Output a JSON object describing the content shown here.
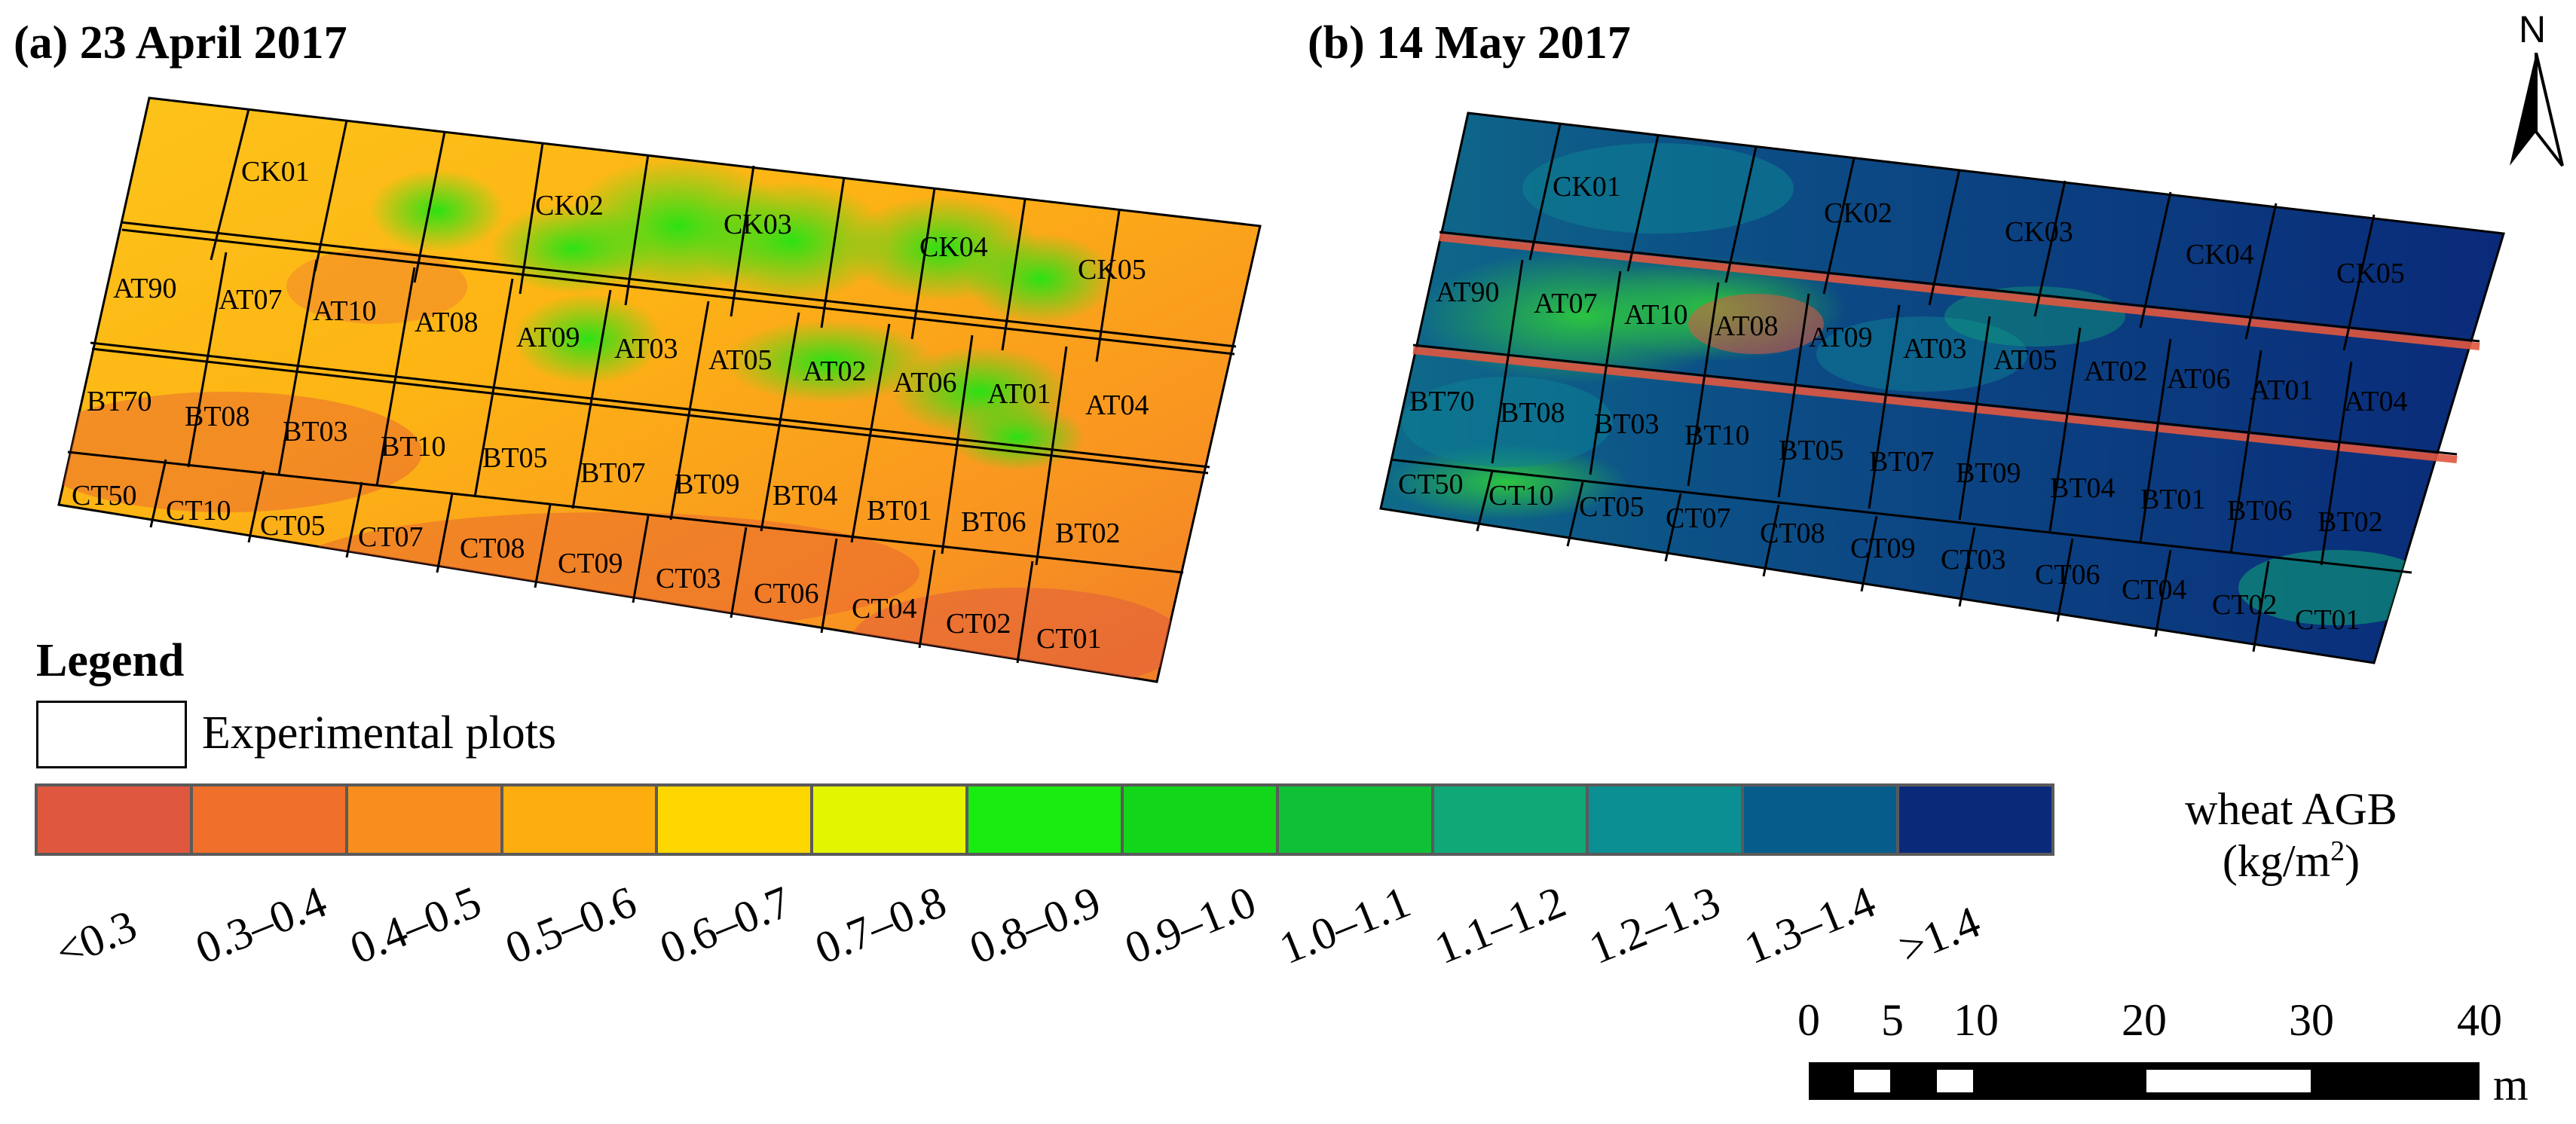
{
  "panel_a": {
    "title": "(a)  23 April 2017",
    "plot_labels": [
      "CK01",
      "CK02",
      "CK03",
      "CK04",
      "CK05",
      "AT90",
      "AT07",
      "AT10",
      "AT08",
      "AT09",
      "AT03",
      "AT05",
      "AT02",
      "AT06",
      "AT01",
      "AT04",
      "BT70",
      "BT08",
      "BT03",
      "BT10",
      "BT05",
      "BT07",
      "BT09",
      "BT04",
      "BT01",
      "BT06",
      "BT02",
      "CT50",
      "CT10",
      "CT05",
      "CT07",
      "CT08",
      "CT09",
      "CT03",
      "CT06",
      "CT04",
      "CT02",
      "CT01"
    ]
  },
  "panel_b": {
    "title": "(b)  14 May 2017",
    "plot_labels": [
      "CK01",
      "CK02",
      "CK03",
      "CK04",
      "CK05",
      "AT90",
      "AT07",
      "AT10",
      "AT08",
      "AT09",
      "AT03",
      "AT05",
      "AT02",
      "AT06",
      "AT01",
      "AT04",
      "BT70",
      "BT08",
      "BT03",
      "BT10",
      "BT05",
      "BT07",
      "BT09",
      "BT04",
      "BT01",
      "BT06",
      "BT02",
      "CT50",
      "CT10",
      "CT05",
      "CT07",
      "CT08",
      "CT09",
      "CT03",
      "CT06",
      "CT04",
      "CT02",
      "CT01"
    ]
  },
  "legend": {
    "title": "Legend",
    "plots_label": "Experimental plots"
  },
  "colorbar": {
    "title_line1": "wheat AGB",
    "title_line2": "(kg/m",
    "title_sup": "2",
    "title_close": ")",
    "classes": [
      {
        "label": "<0.3",
        "color": "#e0573f"
      },
      {
        "label": "0.3–0.4",
        "color": "#ef6f2b"
      },
      {
        "label": "0.4–0.5",
        "color": "#f78e1e"
      },
      {
        "label": "0.5–0.6",
        "color": "#fdad0e"
      },
      {
        "label": "0.6–0.7",
        "color": "#fed600"
      },
      {
        "label": "0.7–0.8",
        "color": "#e3f600"
      },
      {
        "label": "0.8–0.9",
        "color": "#19ec10"
      },
      {
        "label": "0.9–1.0",
        "color": "#12d61a"
      },
      {
        "label": "1.0–1.1",
        "color": "#10c137"
      },
      {
        "label": "1.1–1.2",
        "color": "#11a878"
      },
      {
        "label": "1.2–1.3",
        "color": "#0b8f93"
      },
      {
        "label": "1.3–1.4",
        "color": "#065d8c"
      },
      {
        "label": ">1.4",
        "color": "#0a2a79"
      }
    ]
  },
  "north_arrow": {
    "label": "N"
  },
  "scale_bar": {
    "ticks": [
      "0",
      "5",
      "10",
      "20",
      "30",
      "40"
    ],
    "unit": "m"
  }
}
